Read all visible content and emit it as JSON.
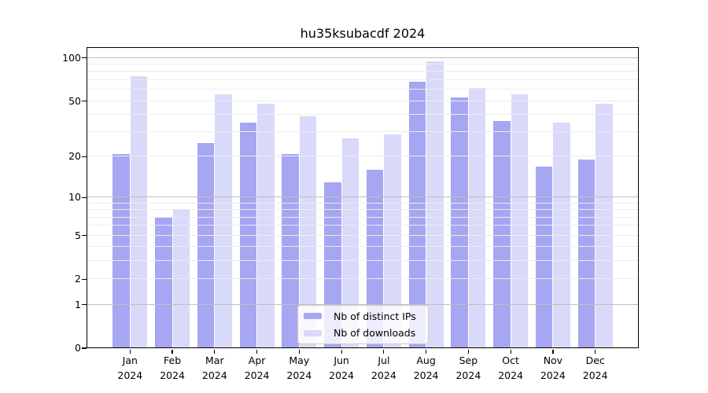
{
  "title": "hu35ksubacdf 2024",
  "chart_data": {
    "type": "bar",
    "title": "hu35ksubacdf 2024",
    "categories": [
      "Jan",
      "Feb",
      "Mar",
      "Apr",
      "May",
      "Jun",
      "Jul",
      "Aug",
      "Sep",
      "Oct",
      "Nov",
      "Dec"
    ],
    "x_year_label": "2024",
    "series": [
      {
        "name": "Nb of distinct IPs",
        "color": "#a6a6f2",
        "values": [
          21,
          7,
          25,
          35,
          21,
          13,
          16,
          68,
          53,
          36,
          17,
          19
        ]
      },
      {
        "name": "Nb of downloads",
        "color": "#d9d9f9",
        "values": [
          75,
          8,
          56,
          48,
          39,
          27,
          29,
          95,
          62,
          56,
          35,
          48
        ]
      }
    ],
    "yscale": "symlog (position proportional to ln(1+value))",
    "ylim": [
      0,
      100
    ],
    "ytick_labels": [
      0,
      1,
      2,
      5,
      10,
      20,
      50,
      100
    ],
    "major_gridlines": [
      1,
      10,
      100
    ],
    "minor_gridlines": [
      2,
      3,
      4,
      5,
      6,
      7,
      8,
      9,
      20,
      30,
      40,
      50,
      60,
      70,
      80,
      90
    ],
    "grid": true,
    "legend_position": "lower center",
    "colors": {
      "major_gridline": "#bfbfbf",
      "minor_gridline": "#ececec",
      "axis_frame": "#000000",
      "background": "#ffffff"
    }
  }
}
